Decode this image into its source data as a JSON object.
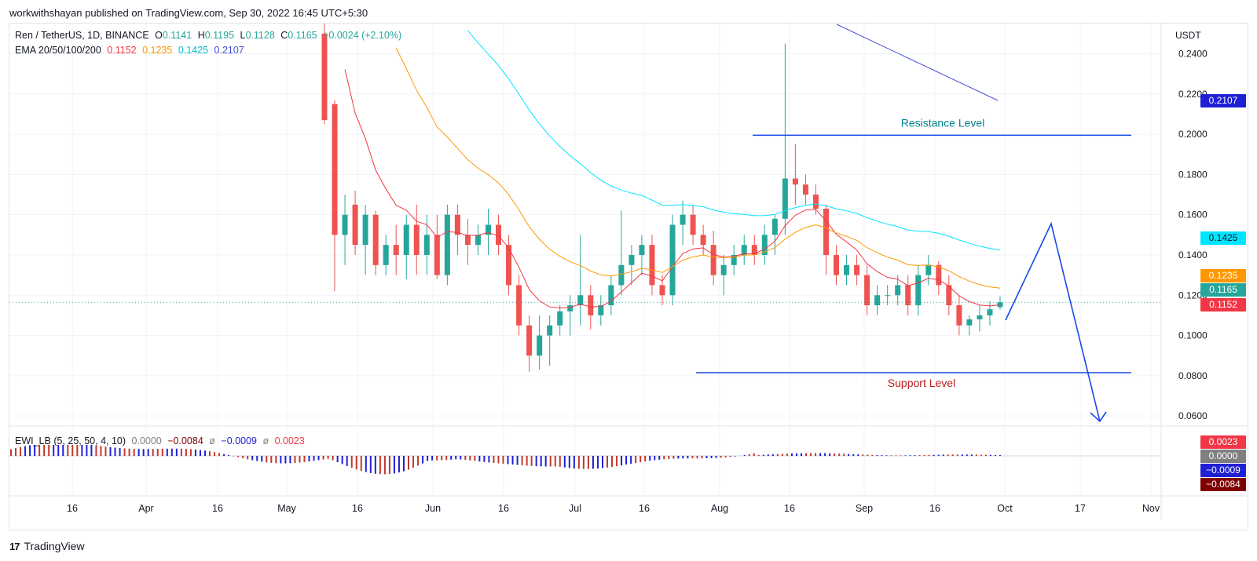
{
  "header": {
    "published_by": "workwithshayan published on TradingView.com, Sep 30, 2022 16:45 UTC+5:30"
  },
  "footer": {
    "brand": "TradingView",
    "logo_mark": "17"
  },
  "legend": {
    "symbol": "Ren / TetherUS, 1D, BINANCE",
    "open_label": "O",
    "open": "0.1141",
    "high_label": "H",
    "high": "0.1195",
    "low_label": "L",
    "low": "0.1128",
    "close_label": "C",
    "close": "0.1165",
    "change": "+0.0024 (+2.10%)",
    "ema_label": "EMA 20/50/100/200",
    "ema20": "0.1152",
    "ema50": "0.1235",
    "ema100": "0.1425",
    "ema200": "0.2107",
    "osc_label": "EWI_LB (5, 25, 50, 4, 10)",
    "osc_v1": "0.0000",
    "osc_v2": "−0.0084",
    "osc_v3": "−0.0009",
    "osc_v4": "0.0023",
    "phi": "ø"
  },
  "colors": {
    "up": "#26a69a",
    "down": "#ef5350",
    "ema20": "#f23645",
    "ema50": "#ff9800",
    "ema100": "#00e5ff",
    "ema200": "#3f51d7",
    "drawing": "#1848e8",
    "osc_red": "#c0392b",
    "osc_blue": "#1f1fd6",
    "osc_dark": "#800000"
  },
  "price_axis": {
    "currency": "USDT",
    "ticks": [
      "0.2400",
      "0.2200",
      "0.2000",
      "0.1800",
      "0.1600",
      "0.1400",
      "0.1200",
      "0.1000",
      "0.0800",
      "0.0600"
    ],
    "tags": [
      {
        "value": "0.2107",
        "color": "#1f1fd6",
        "text_color": "#ffffff"
      },
      {
        "value": "0.1425",
        "color": "#00e5ff",
        "text_color": "#131722"
      },
      {
        "value": "0.1235",
        "color": "#ff9800",
        "text_color": "#ffffff"
      },
      {
        "value": "0.1165",
        "color": "#26a69a",
        "text_color": "#ffffff"
      },
      {
        "value": "0.1152",
        "color": "#f23645",
        "text_color": "#ffffff"
      }
    ]
  },
  "osc_axis": {
    "tags": [
      {
        "value": "0.0023",
        "color": "#f23645"
      },
      {
        "value": "0.0000",
        "color": "#7f7f7f"
      },
      {
        "value": "−0.0009",
        "color": "#1f1fd6"
      },
      {
        "value": "−0.0084",
        "color": "#800000"
      }
    ]
  },
  "time_axis": {
    "labels": [
      "16",
      "Apr",
      "16",
      "May",
      "16",
      "Jun",
      "16",
      "Jul",
      "16",
      "Aug",
      "16",
      "Sep",
      "16",
      "Oct",
      "17",
      "Nov"
    ]
  },
  "annotations": {
    "resistance_label": "Resistance Level",
    "resistance_price": 0.1995,
    "support_label": "Support Level",
    "support_price": 0.0815
  },
  "chart_data": {
    "type": "candlestick",
    "title": "Ren / TetherUS, 1D, BINANCE",
    "ylim": [
      0.055,
      0.255
    ],
    "y_unit": "USDT",
    "grid": true,
    "last_close": 0.1165,
    "series": [
      {
        "name": "EMA 20",
        "last": 0.1152
      },
      {
        "name": "EMA 50",
        "last": 0.1235
      },
      {
        "name": "EMA 100",
        "last": 0.1425
      },
      {
        "name": "EMA 200",
        "last": 0.2107
      }
    ],
    "candles_approx": [
      [
        0.25,
        0.26,
        0.205,
        0.207
      ],
      [
        0.215,
        0.217,
        0.122,
        0.15
      ],
      [
        0.15,
        0.17,
        0.135,
        0.16
      ],
      [
        0.165,
        0.172,
        0.14,
        0.145
      ],
      [
        0.145,
        0.165,
        0.13,
        0.16
      ],
      [
        0.16,
        0.162,
        0.13,
        0.135
      ],
      [
        0.135,
        0.15,
        0.13,
        0.145
      ],
      [
        0.145,
        0.155,
        0.13,
        0.14
      ],
      [
        0.14,
        0.16,
        0.128,
        0.155
      ],
      [
        0.155,
        0.165,
        0.13,
        0.14
      ],
      [
        0.14,
        0.16,
        0.13,
        0.15
      ],
      [
        0.15,
        0.16,
        0.128,
        0.13
      ],
      [
        0.13,
        0.165,
        0.125,
        0.16
      ],
      [
        0.16,
        0.165,
        0.14,
        0.15
      ],
      [
        0.15,
        0.158,
        0.135,
        0.145
      ],
      [
        0.145,
        0.155,
        0.14,
        0.15
      ],
      [
        0.15,
        0.163,
        0.14,
        0.155
      ],
      [
        0.155,
        0.16,
        0.14,
        0.145
      ],
      [
        0.145,
        0.15,
        0.12,
        0.125
      ],
      [
        0.125,
        0.13,
        0.1,
        0.105
      ],
      [
        0.105,
        0.11,
        0.082,
        0.09
      ],
      [
        0.09,
        0.11,
        0.083,
        0.1
      ],
      [
        0.1,
        0.11,
        0.085,
        0.105
      ],
      [
        0.105,
        0.115,
        0.1,
        0.112
      ],
      [
        0.112,
        0.12,
        0.1,
        0.115
      ],
      [
        0.115,
        0.15,
        0.105,
        0.12
      ],
      [
        0.12,
        0.125,
        0.103,
        0.11
      ],
      [
        0.11,
        0.12,
        0.105,
        0.115
      ],
      [
        0.115,
        0.13,
        0.11,
        0.125
      ],
      [
        0.125,
        0.162,
        0.12,
        0.135
      ],
      [
        0.135,
        0.145,
        0.125,
        0.14
      ],
      [
        0.14,
        0.15,
        0.13,
        0.145
      ],
      [
        0.145,
        0.15,
        0.12,
        0.125
      ],
      [
        0.125,
        0.13,
        0.115,
        0.12
      ],
      [
        0.12,
        0.16,
        0.115,
        0.155
      ],
      [
        0.155,
        0.167,
        0.145,
        0.16
      ],
      [
        0.16,
        0.165,
        0.145,
        0.15
      ],
      [
        0.15,
        0.155,
        0.14,
        0.145
      ],
      [
        0.145,
        0.152,
        0.125,
        0.13
      ],
      [
        0.13,
        0.14,
        0.12,
        0.135
      ],
      [
        0.135,
        0.145,
        0.13,
        0.14
      ],
      [
        0.14,
        0.15,
        0.135,
        0.145
      ],
      [
        0.145,
        0.15,
        0.135,
        0.14
      ],
      [
        0.14,
        0.155,
        0.135,
        0.15
      ],
      [
        0.15,
        0.16,
        0.14,
        0.158
      ],
      [
        0.158,
        0.245,
        0.15,
        0.178
      ],
      [
        0.178,
        0.195,
        0.165,
        0.175
      ],
      [
        0.175,
        0.18,
        0.165,
        0.17
      ],
      [
        0.17,
        0.175,
        0.16,
        0.163
      ],
      [
        0.163,
        0.165,
        0.13,
        0.14
      ],
      [
        0.14,
        0.145,
        0.125,
        0.13
      ],
      [
        0.13,
        0.14,
        0.125,
        0.135
      ],
      [
        0.135,
        0.14,
        0.125,
        0.13
      ],
      [
        0.13,
        0.135,
        0.11,
        0.115
      ],
      [
        0.115,
        0.125,
        0.11,
        0.12
      ],
      [
        0.12,
        0.125,
        0.115,
        0.12
      ],
      [
        0.12,
        0.13,
        0.115,
        0.125
      ],
      [
        0.125,
        0.13,
        0.11,
        0.115
      ],
      [
        0.115,
        0.135,
        0.11,
        0.13
      ],
      [
        0.13,
        0.14,
        0.125,
        0.135
      ],
      [
        0.135,
        0.137,
        0.12,
        0.125
      ],
      [
        0.125,
        0.13,
        0.11,
        0.115
      ],
      [
        0.115,
        0.12,
        0.1,
        0.105
      ],
      [
        0.105,
        0.11,
        0.1,
        0.108
      ],
      [
        0.108,
        0.115,
        0.102,
        0.11
      ],
      [
        0.11,
        0.117,
        0.105,
        0.113
      ],
      [
        0.1141,
        0.1195,
        0.1128,
        0.1165
      ]
    ]
  }
}
